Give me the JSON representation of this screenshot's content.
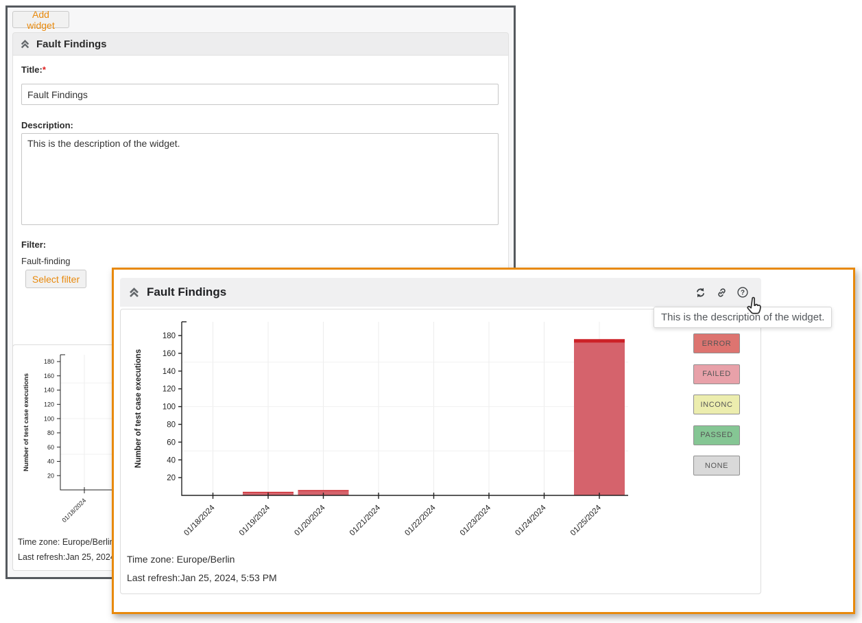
{
  "colors": {
    "accent_orange": "#e8890c",
    "window_border": "#55595e",
    "header_bg": "#f0f0f1",
    "card_border": "#dcdcdc",
    "axis": "#222222",
    "bar_failed": "#d5636c",
    "bar_error": "#cc2127"
  },
  "icons": {
    "header_collapse": "double-chevron-up",
    "preview_actions": [
      "refresh",
      "link",
      "help"
    ],
    "cursor": "hand-pointer"
  },
  "editor": {
    "add_widget_button": "Add widget",
    "section_title": "Fault Findings",
    "fields": {
      "title_label": "Title:",
      "required_mark": "*",
      "title_value": "Fault Findings",
      "description_label": "Description:",
      "description_value": "This is the description of the widget.",
      "filter_label": "Filter:",
      "filter_value": "Fault-finding",
      "select_filter_button": "Select filter"
    },
    "footer": {
      "timezone": "Time zone: Europe/Berlin",
      "last_refresh": "Last refresh:Jan 25, 2024, 5:"
    }
  },
  "preview": {
    "title": "Fault Findings",
    "tooltip": "This is the description of the widget.",
    "footer": {
      "timezone": "Time zone: Europe/Berlin",
      "last_refresh": "Last refresh:Jan 25, 2024, 5:53 PM"
    }
  },
  "chart_data": {
    "type": "bar",
    "stacked": true,
    "title": "",
    "xlabel": "",
    "ylabel": "Number of test case executions",
    "categories": [
      "01/18/2024",
      "01/19/2024",
      "01/20/2024",
      "01/21/2024",
      "01/22/2024",
      "01/23/2024",
      "01/24/2024",
      "01/25/2024"
    ],
    "series": [
      {
        "name": "FAILED",
        "color": "#d5636c",
        "values": [
          0,
          3,
          5,
          0,
          0,
          0,
          0,
          172
        ]
      },
      {
        "name": "ERROR",
        "color": "#cc2127",
        "values": [
          0,
          1,
          1,
          0,
          0,
          0,
          0,
          4
        ]
      }
    ],
    "yticks": [
      20,
      40,
      60,
      80,
      100,
      120,
      140,
      160,
      180
    ],
    "ylim": [
      0,
      195
    ],
    "grid": true,
    "grid_h": [
      50,
      100,
      150
    ],
    "legend_position": "right",
    "legend": [
      {
        "label": "ERROR",
        "color": "#dd7470"
      },
      {
        "label": "FAILED",
        "color": "#e8a1a9"
      },
      {
        "label": "INCONC",
        "color": "#ecedae"
      },
      {
        "label": "PASSED",
        "color": "#85c694"
      },
      {
        "label": "NONE",
        "color": "#d9d9d9"
      }
    ]
  }
}
